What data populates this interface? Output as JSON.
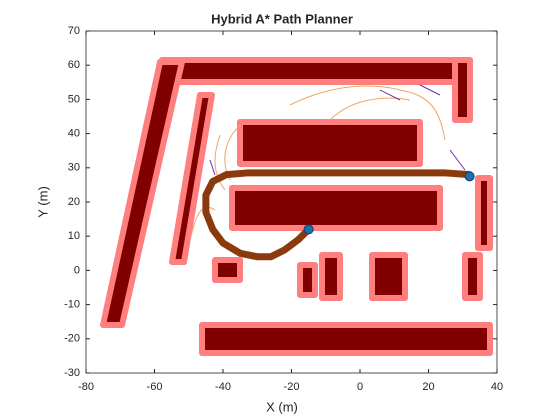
{
  "chart_data": {
    "type": "line",
    "title": "Hybrid A* Path Planner",
    "xlabel": "X (m)",
    "ylabel": "Y (m)",
    "xlim": [
      -80,
      40
    ],
    "xticks": [
      -80,
      -60,
      -40,
      -20,
      0,
      20,
      40
    ],
    "ylim": [
      -30,
      70
    ],
    "yticks": [
      -30,
      -20,
      -10,
      0,
      10,
      20,
      30,
      40,
      50,
      60,
      70
    ],
    "series": [
      {
        "color": "#8b3a0e",
        "x": [
          -15,
          -18,
          -22,
          -26,
          -30,
          -35,
          -40,
          -43,
          -45,
          -45,
          -43,
          -39,
          -33,
          -25,
          -15,
          0,
          15,
          25,
          32
        ],
        "y": [
          12,
          9,
          6,
          4,
          4,
          5,
          8,
          12,
          17,
          22,
          26,
          28,
          28.5,
          28.5,
          28.5,
          28.5,
          28.5,
          28.5,
          28
        ]
      },
      {
        "color": "#1f6fb0",
        "x": [
          -15,
          32
        ],
        "y": [
          12,
          27.5
        ],
        "marker": "hexagram"
      }
    ]
  }
}
